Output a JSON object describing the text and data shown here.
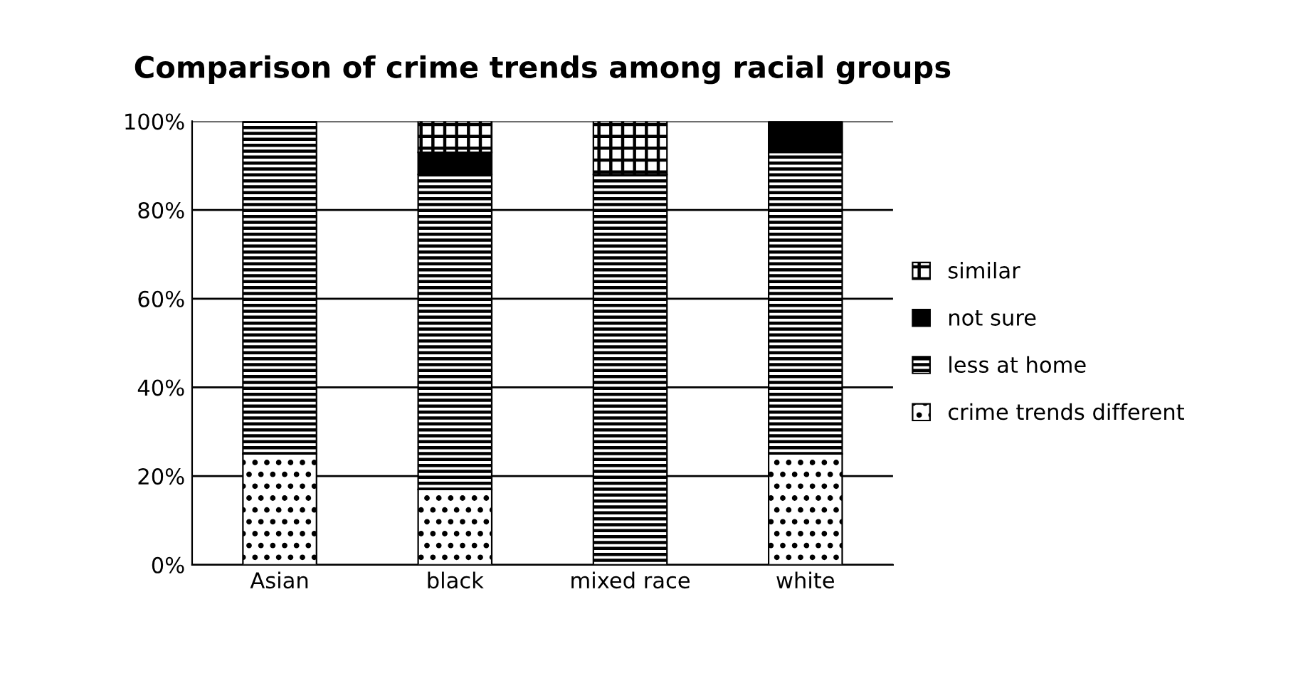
{
  "chart_data": {
    "type": "bar",
    "title": "Comparison of crime trends among racial groups",
    "categories": [
      "Asian",
      "black",
      "mixed race",
      "white"
    ],
    "stacked": true,
    "series": [
      {
        "name": "crime trends different",
        "color": "#000000",
        "values": [
          25,
          17,
          0,
          25
        ]
      },
      {
        "name": "less at home",
        "color": "#000000",
        "values": [
          75,
          71,
          88,
          68
        ]
      },
      {
        "name": "not sure",
        "color": "#000000",
        "values": [
          0,
          5,
          0,
          7
        ]
      },
      {
        "name": "similar",
        "color": "#000000",
        "values": [
          0,
          7,
          12,
          0
        ]
      }
    ],
    "ylim": [
      0,
      100
    ],
    "yticks": [
      {
        "value": 0,
        "label": "0%"
      },
      {
        "value": 20,
        "label": "20%"
      },
      {
        "value": 40,
        "label": "40%"
      },
      {
        "value": 60,
        "label": "60%"
      },
      {
        "value": 80,
        "label": "80%"
      },
      {
        "value": 100,
        "label": "100%"
      }
    ],
    "grid": "y",
    "legend": "right"
  }
}
